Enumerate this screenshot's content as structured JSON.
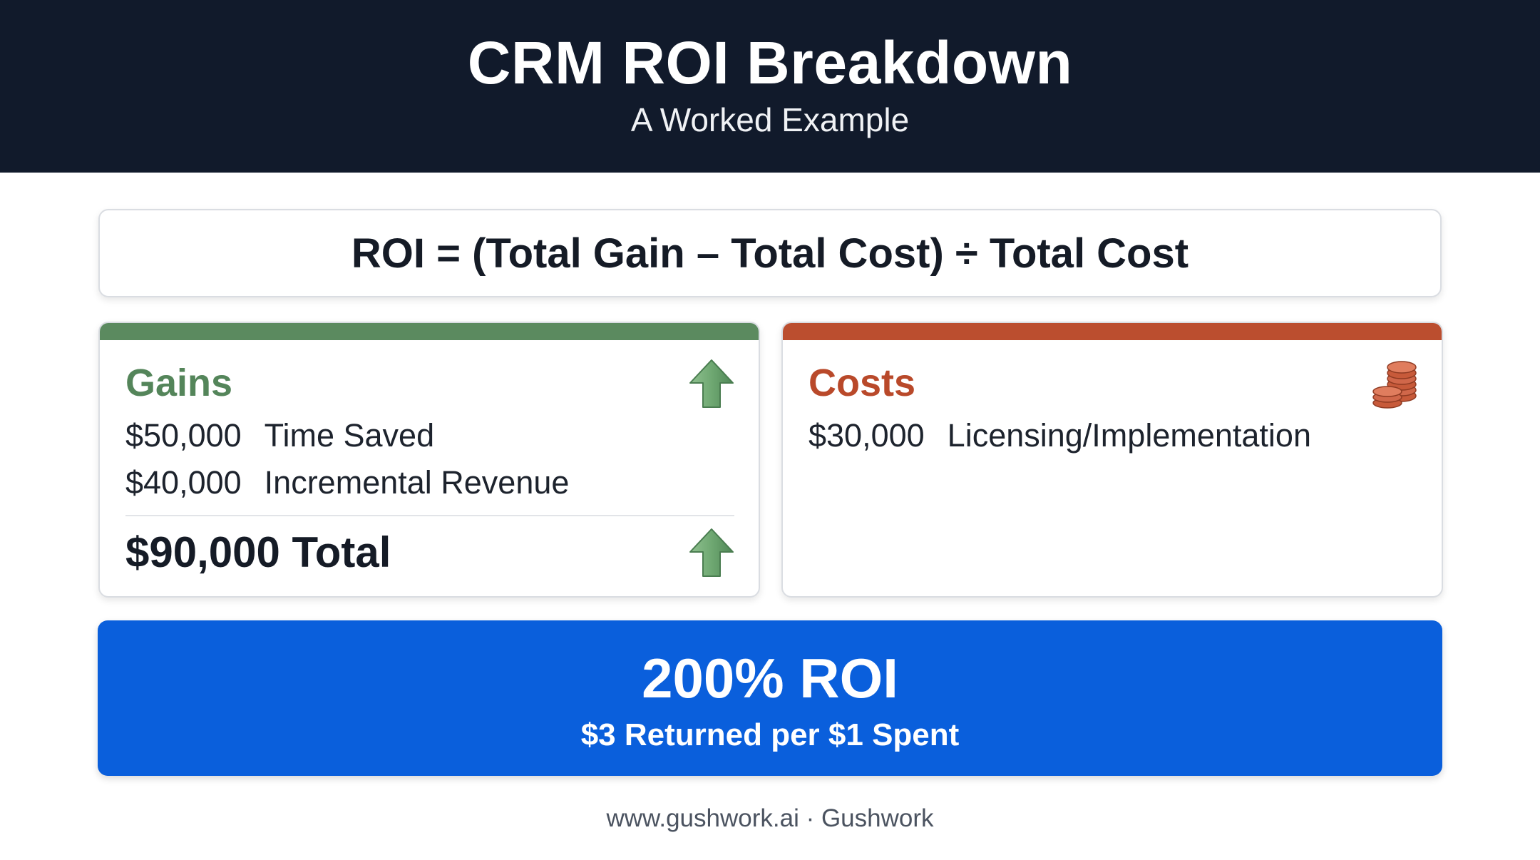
{
  "header": {
    "title": "CRM ROI Breakdown",
    "subtitle": "A Worked Example"
  },
  "formula": "ROI = (Total Gain – Total Cost) ÷ Total Cost",
  "gains": {
    "title": "Gains",
    "icon": "arrow-up-icon",
    "color": "#5b8a5f",
    "items": [
      {
        "amount": "$50,000",
        "label": "Time Saved"
      },
      {
        "amount": "$40,000",
        "label": "Incremental Revenue"
      }
    ],
    "total": "$90,000 Total"
  },
  "costs": {
    "title": "Costs",
    "icon": "coins-icon",
    "color": "#bb4e2f",
    "items": [
      {
        "amount": "$30,000",
        "label": "Licensing/Implementation"
      }
    ]
  },
  "result": {
    "headline": "200% ROI",
    "subline": "$3 Returned per $1 Spent",
    "color": "#0a5fdc"
  },
  "footer": "www.gushwork.ai · Gushwork"
}
